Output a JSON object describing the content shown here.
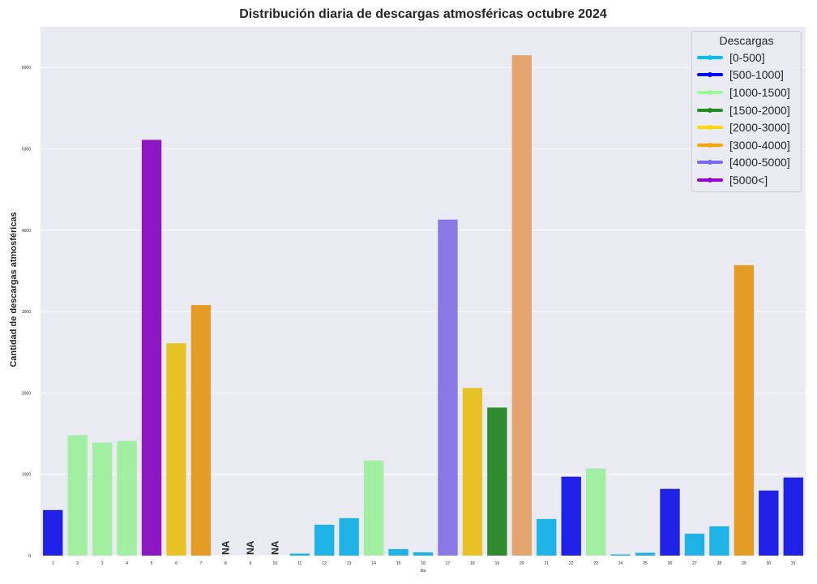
{
  "chart_data": {
    "type": "bar",
    "title": "Distribución diaria de descargas atmosféricas octubre 2024",
    "xlabel": "dia",
    "ylabel": "Cantidad de descargas atmosféricas",
    "ylim": [
      0,
      6500
    ],
    "yticks": [
      0,
      1000,
      2000,
      3000,
      4000,
      5000,
      6000
    ],
    "grid": true,
    "legend_position": "top-right",
    "legend_title": "Descargas",
    "legend": [
      {
        "label": "[0-500]",
        "color": "#00BFFF"
      },
      {
        "label": "[500-1000]",
        "color": "#0000FF"
      },
      {
        "label": "[1000-1500]",
        "color": "#98FB98"
      },
      {
        "label": "[1500-2000]",
        "color": "#228B22"
      },
      {
        "label": "[2000-3000]",
        "color": "#FFD700"
      },
      {
        "label": "[3000-4000]",
        "color": "#FFA500"
      },
      {
        "label": "[4000-5000]",
        "color": "#7B68EE"
      },
      {
        "label": "[5000<]",
        "color": "#9400D3"
      }
    ],
    "categories": [
      "1",
      "2",
      "3",
      "4",
      "5",
      "6",
      "7",
      "8",
      "9",
      "10",
      "11",
      "12",
      "13",
      "14",
      "15",
      "16",
      "17",
      "18",
      "19",
      "20",
      "21",
      "22",
      "23",
      "24",
      "25",
      "26",
      "27",
      "28",
      "29",
      "30",
      "31"
    ],
    "values": [
      560,
      1480,
      1390,
      1410,
      5110,
      2610,
      3080,
      null,
      null,
      null,
      25,
      380,
      460,
      1170,
      80,
      40,
      4130,
      2060,
      1820,
      6150,
      450,
      970,
      1070,
      15,
      35,
      820,
      270,
      360,
      3570,
      800,
      960
    ],
    "colors": [
      "#1F21E6",
      "#A1F0A1",
      "#A1F0A1",
      "#A1F0A1",
      "#8E17C4",
      "#E6C226",
      "#E59C24",
      null,
      null,
      null,
      "#1FB2E6",
      "#1FB2E6",
      "#1FB2E6",
      "#A1F0A1",
      "#1FB2E6",
      "#1FB2E6",
      "#8A78E6",
      "#E6C226",
      "#2E8B2E",
      "#E4A46E",
      "#1FB2E6",
      "#1F21E6",
      "#A1F0A1",
      "#1FB2E6",
      "#1FB2E6",
      "#1F21E6",
      "#1FB2E6",
      "#1FB2E6",
      "#E59C24",
      "#1F21E6",
      "#1F21E6"
    ],
    "missing_label": "NA"
  }
}
